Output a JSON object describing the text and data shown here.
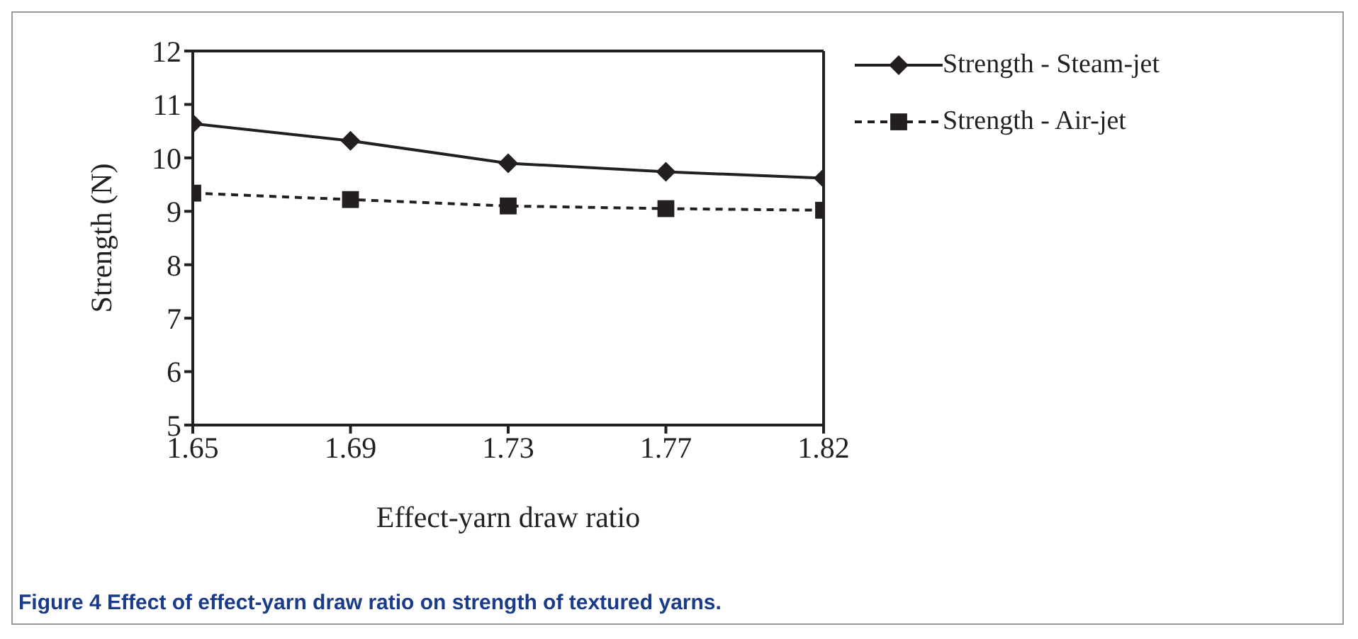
{
  "chart_data": {
    "type": "line",
    "xlabel": "Effect-yarn draw ratio",
    "ylabel": "Strength (N)",
    "categories": [
      "1.65",
      "1.69",
      "1.73",
      "1.77",
      "1.82"
    ],
    "series": [
      {
        "name": "Strength - Steam-jet",
        "color": "#231f20",
        "values": [
          10.64,
          10.32,
          9.9,
          9.74,
          9.62
        ],
        "marker": "diamond",
        "line_style": "solid"
      },
      {
        "name": "Strength - Air-jet",
        "color": "#231f20",
        "values": [
          9.34,
          9.22,
          9.1,
          9.05,
          9.02
        ],
        "marker": "square",
        "line_style": "dashed"
      }
    ],
    "ylim": [
      5,
      12
    ],
    "yticks": [
      5,
      6,
      7,
      8,
      9,
      10,
      11,
      12
    ],
    "grid": false,
    "legend": "right",
    "annotations": [
      "Figure 4 Effect of effect-yarn draw ratio on strength of textured yarns."
    ]
  }
}
